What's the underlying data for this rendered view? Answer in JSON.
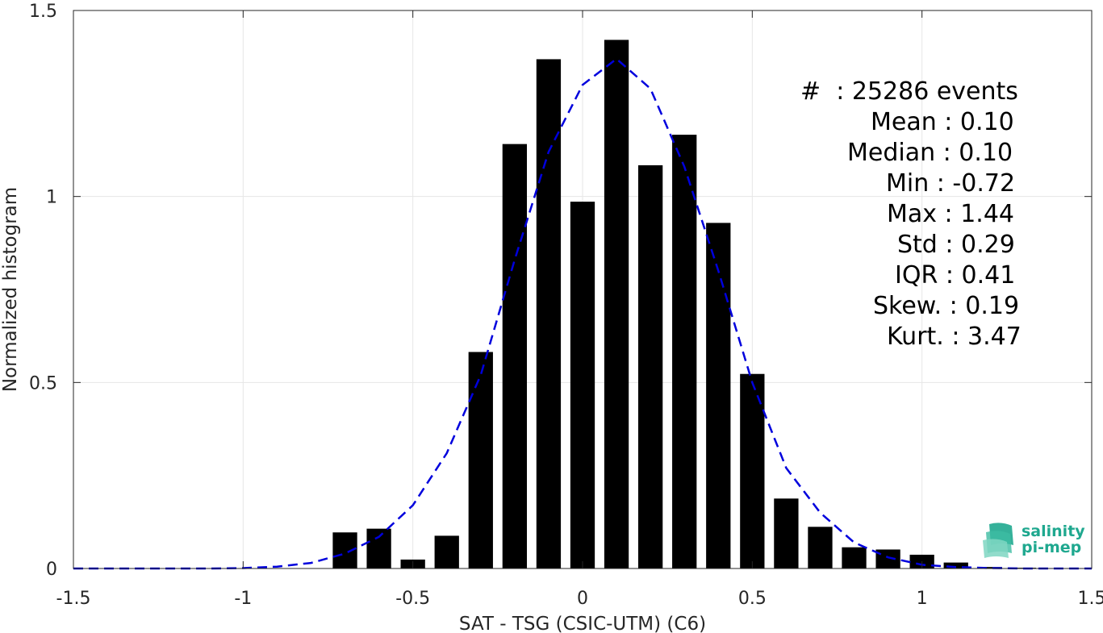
{
  "chart_data": {
    "type": "bar",
    "xlabel": "SAT - TSG (CSIC-UTM) (C6)",
    "ylabel": "Normalized histogram",
    "xlim": [
      -1.5,
      1.5
    ],
    "ylim": [
      0,
      1.5
    ],
    "xticks": [
      -1.5,
      -1,
      -0.5,
      0,
      0.5,
      1,
      1.5
    ],
    "xtick_labels": [
      "-1.5",
      "-1",
      "-0.5",
      "0",
      "0.5",
      "1",
      "1.5"
    ],
    "yticks": [
      0,
      0.5,
      1,
      1.5
    ],
    "ytick_labels": [
      "0",
      "0.5",
      "1",
      "1.5"
    ],
    "grid": true,
    "bar_color": "#000000",
    "bars": {
      "x": [
        -0.7,
        -0.6,
        -0.5,
        -0.4,
        -0.3,
        -0.2,
        -0.1,
        0.0,
        0.1,
        0.2,
        0.3,
        0.4,
        0.5,
        0.6,
        0.7,
        0.8,
        0.9,
        1.0,
        1.1,
        1.2,
        1.3
      ],
      "values": [
        0.097,
        0.107,
        0.024,
        0.088,
        0.582,
        1.141,
        1.369,
        0.986,
        1.421,
        1.084,
        1.166,
        0.929,
        0.523,
        0.188,
        0.112,
        0.057,
        0.051,
        0.037,
        0.016,
        0.004,
        0.002
      ]
    },
    "fit_line": {
      "style": "dashed",
      "color": "#0000dd",
      "x": [
        -1.5,
        -1.4,
        -1.3,
        -1.2,
        -1.1,
        -1.0,
        -0.9,
        -0.8,
        -0.7,
        -0.6,
        -0.5,
        -0.4,
        -0.3,
        -0.2,
        -0.1,
        0.0,
        0.1,
        0.2,
        0.3,
        0.4,
        0.5,
        0.6,
        0.7,
        0.8,
        0.9,
        1.0,
        1.1,
        1.2,
        1.3,
        1.4,
        1.5
      ],
      "y": [
        0.0,
        0.0,
        0.0,
        0.0,
        0.0,
        0.001,
        0.005,
        0.015,
        0.04,
        0.085,
        0.17,
        0.31,
        0.52,
        0.83,
        1.12,
        1.3,
        1.37,
        1.29,
        1.08,
        0.8,
        0.5,
        0.27,
        0.15,
        0.07,
        0.03,
        0.01,
        0.004,
        0.001,
        0.0,
        0.0,
        0.0
      ]
    }
  },
  "stats": {
    "lines": [
      "#  : 25286 events",
      "Mean : 0.10",
      "Median : 0.10",
      "Min : -0.72",
      "Max : 1.44",
      "Std : 0.29",
      "IQR : 0.41",
      "Skew. : 0.19",
      "Kurt. : 3.47"
    ]
  },
  "logo": {
    "line1": "salinity",
    "line2": "pi-mep",
    "colors": [
      "#1fa88f",
      "#7fd6c2"
    ]
  }
}
